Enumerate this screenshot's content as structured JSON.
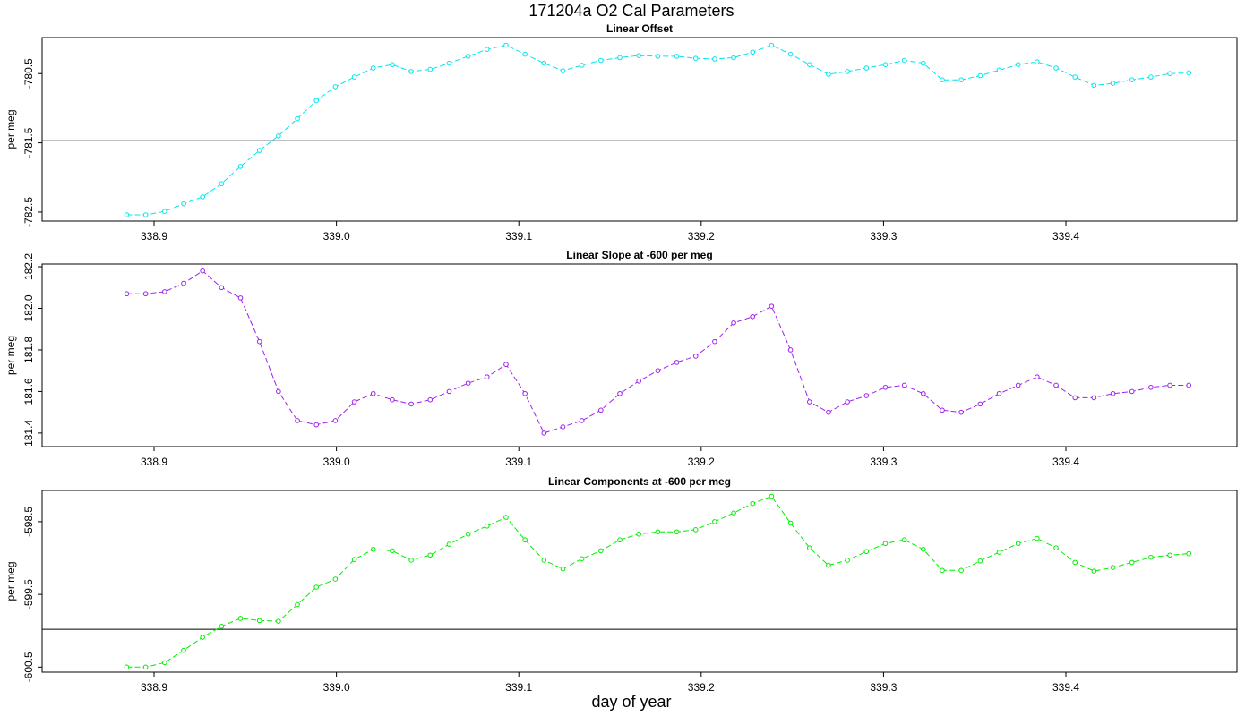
{
  "title": "171204a   O2 Cal Parameters",
  "xlabel": "day of year",
  "chart_data": [
    {
      "type": "line",
      "title": "Linear Offset",
      "ylabel": "per meg",
      "color": "#00e5ee",
      "xlim": [
        338.8386,
        339.4938
      ],
      "ylim": [
        -782.63,
        -779.98
      ],
      "xticks": [
        338.9,
        {
          "value": 339,
          "label": "339.0"
        },
        339.1,
        339.2,
        339.3,
        339.4
      ],
      "yticks": [
        -780.5,
        -781.5,
        -782.5
      ],
      "hline": -781.47,
      "x": [
        338.885,
        338.8954,
        338.9058,
        338.9162,
        338.9266,
        338.937,
        338.9474,
        338.9578,
        338.9682,
        338.9786,
        338.989,
        338.9994,
        339.0098,
        339.0202,
        339.0306,
        339.041,
        339.0514,
        339.0618,
        339.0722,
        339.0826,
        339.093,
        339.1034,
        339.1138,
        339.1242,
        339.1346,
        339.145,
        339.1554,
        339.1658,
        339.1762,
        339.1866,
        339.197,
        339.2074,
        339.2178,
        339.2282,
        339.2386,
        339.249,
        339.2594,
        339.2698,
        339.2802,
        339.2906,
        339.301,
        339.3114,
        339.3218,
        339.3322,
        339.3426,
        339.353,
        339.3634,
        339.3738,
        339.3842,
        339.3946,
        339.405,
        339.4154,
        339.4258,
        339.4362,
        339.4466,
        339.457,
        339.4674
      ],
      "values": [
        -782.54,
        -782.54,
        -782.49,
        -782.38,
        -782.28,
        -782.09,
        -781.84,
        -781.61,
        -781.4,
        -781.15,
        -780.89,
        -780.69,
        -780.55,
        -780.42,
        -780.37,
        -780.47,
        -780.44,
        -780.35,
        -780.25,
        -780.15,
        -780.09,
        -780.22,
        -780.35,
        -780.46,
        -780.38,
        -780.31,
        -780.27,
        -780.24,
        -780.25,
        -780.25,
        -780.28,
        -780.29,
        -780.27,
        -780.19,
        -780.09,
        -780.22,
        -780.37,
        -780.51,
        -780.47,
        -780.42,
        -780.37,
        -780.31,
        -780.35,
        -780.59,
        -780.59,
        -780.53,
        -780.45,
        -780.37,
        -780.33,
        -780.42,
        -780.55,
        -780.67,
        -780.64,
        -780.59,
        -780.55,
        -780.5,
        -780.49
      ]
    },
    {
      "type": "line",
      "title": "Linear Slope at -600 per meg",
      "ylabel": "per meg",
      "color": "#a020f0",
      "xlim": [
        338.8386,
        339.4938
      ],
      "ylim": [
        181.335,
        182.213
      ],
      "xticks": [
        338.9,
        {
          "value": 339,
          "label": "339.0"
        },
        339.1,
        339.2,
        339.3,
        339.4
      ],
      "yticks": [
        181.4,
        181.6,
        181.8,
        {
          "value": 182,
          "label": "182.0"
        },
        182.2
      ],
      "x": [
        338.885,
        338.8954,
        338.9058,
        338.9162,
        338.9266,
        338.937,
        338.9474,
        338.9578,
        338.9682,
        338.9786,
        338.989,
        338.9994,
        339.0098,
        339.0202,
        339.0306,
        339.041,
        339.0514,
        339.0618,
        339.0722,
        339.0826,
        339.093,
        339.1034,
        339.1138,
        339.1242,
        339.1346,
        339.145,
        339.1554,
        339.1658,
        339.1762,
        339.1866,
        339.197,
        339.2074,
        339.2178,
        339.2282,
        339.2386,
        339.249,
        339.2594,
        339.2698,
        339.2802,
        339.2906,
        339.301,
        339.3114,
        339.3218,
        339.3322,
        339.3426,
        339.353,
        339.3634,
        339.3738,
        339.3842,
        339.3946,
        339.405,
        339.4154,
        339.4258,
        339.4362,
        339.4466,
        339.457,
        339.4674
      ],
      "values": [
        182.07,
        182.07,
        182.08,
        182.12,
        182.18,
        182.1,
        182.05,
        181.84,
        181.6,
        181.46,
        181.44,
        181.46,
        181.55,
        181.59,
        181.56,
        181.54,
        181.56,
        181.6,
        181.64,
        181.67,
        181.73,
        181.59,
        181.4,
        181.43,
        181.46,
        181.51,
        181.59,
        181.65,
        181.7,
        181.74,
        181.77,
        181.84,
        181.93,
        181.96,
        182.01,
        181.8,
        181.55,
        181.5,
        181.55,
        181.58,
        181.62,
        181.63,
        181.59,
        181.51,
        181.5,
        181.54,
        181.59,
        181.63,
        181.67,
        181.63,
        181.57,
        181.57,
        181.59,
        181.6,
        181.62,
        181.63,
        181.63
      ]
    },
    {
      "type": "line",
      "title": "Linear Components at -600 per meg",
      "ylabel": "per meg",
      "color": "#00ee00",
      "xlim": [
        338.8386,
        339.4938
      ],
      "ylim": [
        -600.57,
        -598.07
      ],
      "xticks": [
        338.9,
        {
          "value": 339,
          "label": "339.0"
        },
        339.1,
        339.2,
        339.3,
        339.4
      ],
      "yticks": [
        -598.5,
        -599.5,
        -600.5
      ],
      "hline": -599.98,
      "x": [
        338.885,
        338.8954,
        338.9058,
        338.9162,
        338.9266,
        338.937,
        338.9474,
        338.9578,
        338.9682,
        338.9786,
        338.989,
        338.9994,
        339.0098,
        339.0202,
        339.0306,
        339.041,
        339.0514,
        339.0618,
        339.0722,
        339.0826,
        339.093,
        339.1034,
        339.1138,
        339.1242,
        339.1346,
        339.145,
        339.1554,
        339.1658,
        339.1762,
        339.1866,
        339.197,
        339.2074,
        339.2178,
        339.2282,
        339.2386,
        339.249,
        339.2594,
        339.2698,
        339.2802,
        339.2906,
        339.301,
        339.3114,
        339.3218,
        339.3322,
        339.3426,
        339.353,
        339.3634,
        339.3738,
        339.3842,
        339.3946,
        339.405,
        339.4154,
        339.4258,
        339.4362,
        339.4466,
        339.457,
        339.4674
      ],
      "values": [
        -600.5,
        -600.5,
        -600.44,
        -600.27,
        -600.09,
        -599.94,
        -599.83,
        -599.86,
        -599.87,
        -599.64,
        -599.4,
        -599.29,
        -599.02,
        -598.88,
        -598.9,
        -599.03,
        -598.96,
        -598.81,
        -598.67,
        -598.56,
        -598.44,
        -598.75,
        -599.03,
        -599.15,
        -599.01,
        -598.9,
        -598.75,
        -598.67,
        -598.64,
        -598.64,
        -598.61,
        -598.5,
        -598.38,
        -598.25,
        -598.15,
        -598.52,
        -598.86,
        -599.1,
        -599.03,
        -598.91,
        -598.8,
        -598.75,
        -598.88,
        -599.17,
        -599.17,
        -599.04,
        -598.92,
        -598.8,
        -598.73,
        -598.86,
        -599.06,
        -599.18,
        -599.13,
        -599.06,
        -598.99,
        -598.96,
        -598.94
      ]
    }
  ]
}
